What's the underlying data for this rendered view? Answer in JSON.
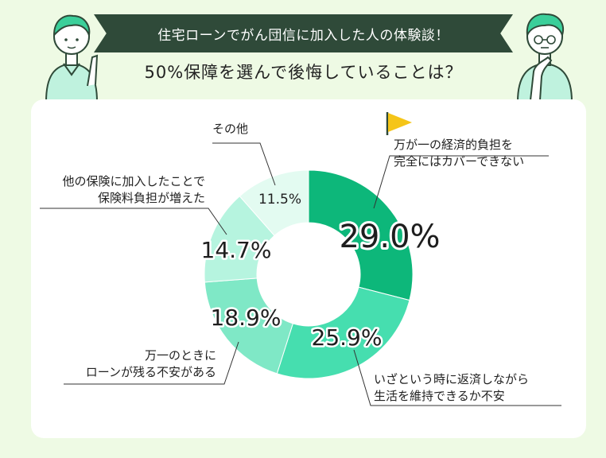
{
  "header": {
    "banner": "住宅ローンでがん団信に加入した人の体験談！",
    "question": "50%保障を選んで後悔していることは？"
  },
  "chart_data": {
    "type": "donut",
    "unit": "%",
    "slices": [
      {
        "label_lines": [
          "万が一の経済的負担を",
          "完全にはカバーできない"
        ],
        "value": 29.0,
        "value_label": "29.0%",
        "color": "#0db77a"
      },
      {
        "label_lines": [
          "いざという時に返済しながら",
          "生活を維持できるか不安"
        ],
        "value": 25.9,
        "value_label": "25.9%",
        "color": "#46deaf"
      },
      {
        "label_lines": [
          "万一のときに",
          "ローンが残る不安がある"
        ],
        "value": 18.9,
        "value_label": "18.9%",
        "color": "#7fe8c6"
      },
      {
        "label_lines": [
          "他の保険に加入したことで",
          "保険料負担が増えた"
        ],
        "value": 14.7,
        "value_label": "14.7%",
        "color": "#b6f4df"
      },
      {
        "label_lines": [
          "その他"
        ],
        "value": 11.5,
        "value_label": "11.5%",
        "color": "#e3fbf1"
      }
    ],
    "highlight_icon": "flag-icon",
    "colors": {
      "accent": "#0db77a",
      "banner": "#2f4a39",
      "flag": "#f5c518"
    }
  }
}
